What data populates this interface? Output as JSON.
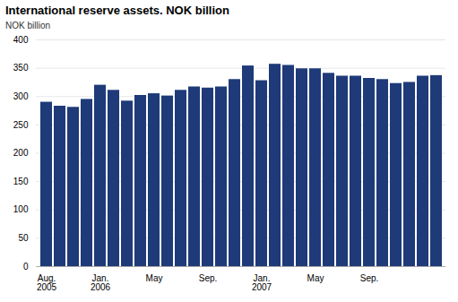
{
  "chart_data": {
    "type": "bar",
    "title": "International reserve assets. NOK billion",
    "ylabel": "NOK billion",
    "categories": [
      "Aug.\n2005",
      null,
      null,
      null,
      "Jan.\n2006",
      null,
      null,
      null,
      "May",
      null,
      null,
      null,
      "Sep.",
      null,
      null,
      null,
      "Jan.\n2007",
      null,
      null,
      null,
      "May",
      null,
      null,
      null,
      "Sep.",
      null,
      null,
      null,
      null,
      null
    ],
    "values": [
      290,
      283,
      281,
      295,
      320,
      311,
      292,
      302,
      305,
      301,
      311,
      317,
      315,
      317,
      330,
      354,
      328,
      357,
      355,
      349,
      349,
      341,
      336,
      336,
      332,
      330,
      323,
      325,
      336,
      337
    ],
    "color": "#1e3a78",
    "ylim": [
      0,
      400
    ],
    "yticks": [
      0,
      50,
      100,
      150,
      200,
      250,
      300,
      350,
      400
    ],
    "grid": true
  }
}
